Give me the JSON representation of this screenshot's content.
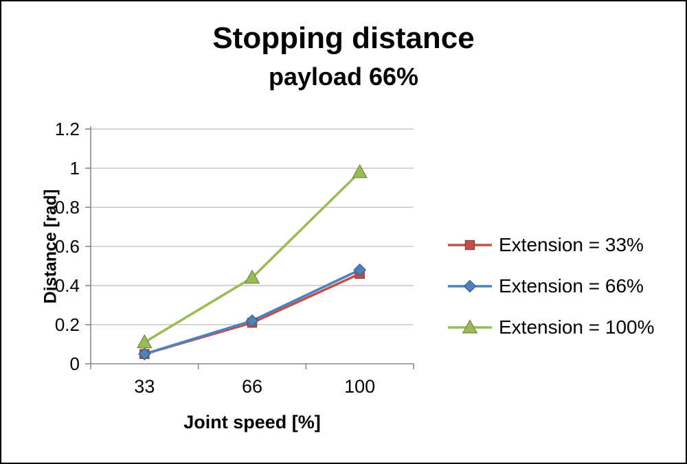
{
  "chart_data": {
    "type": "line",
    "title": "Stopping distance",
    "subtitle": "payload 66%",
    "xlabel": "Joint speed [%]",
    "ylabel": "Distance [rad]",
    "categories": [
      "33",
      "66",
      "100"
    ],
    "yticks": [
      "0",
      "0.2",
      "0.4",
      "0.6",
      "0.8",
      "1",
      "1.2"
    ],
    "ylim": [
      0,
      1.2
    ],
    "grid": true,
    "legend_position": "right",
    "series": [
      {
        "name": "Extension = 33%",
        "values": [
          0.05,
          0.21,
          0.46
        ],
        "color": "#C0504D",
        "marker": "square"
      },
      {
        "name": "Extension = 66%",
        "values": [
          0.05,
          0.22,
          0.48
        ],
        "color": "#4F81BD",
        "marker": "diamond"
      },
      {
        "name": "Extension = 100%",
        "values": [
          0.11,
          0.44,
          0.98
        ],
        "color": "#9BBB59",
        "marker": "triangle"
      }
    ],
    "colors": {
      "gridline": "#C6C6C6",
      "axis": "#898989",
      "text": "#000000",
      "background": "#FFFFFF"
    }
  }
}
